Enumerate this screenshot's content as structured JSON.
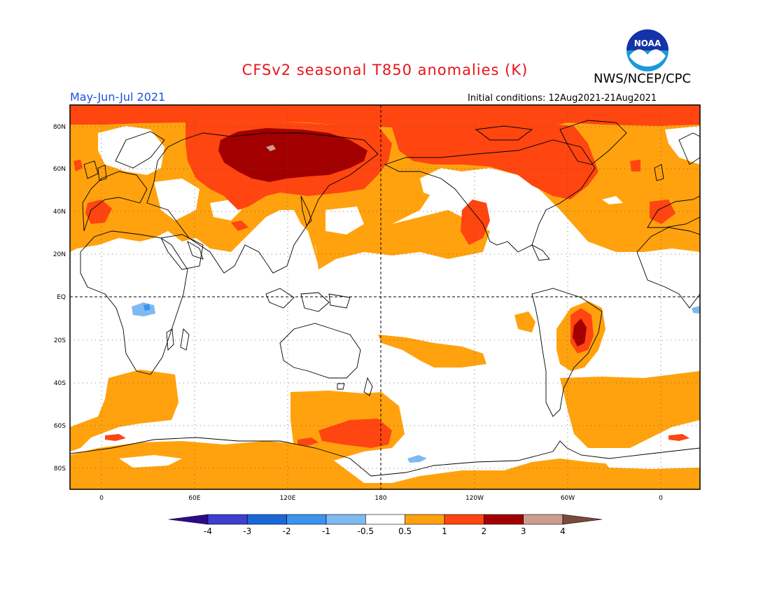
{
  "header": {
    "title": "CFSv2 seasonal T850 anomalies (K)",
    "organization": "NWS/NCEP/CPC",
    "logo_text": "NOAA",
    "period": "May-Jun-Jul 2021",
    "initial_conditions": "Initial conditions: 12Aug2021-21Aug2021"
  },
  "map": {
    "lon_labels": [
      "0",
      "60E",
      "120E",
      "180",
      "120W",
      "60W",
      "0"
    ],
    "lat_labels": [
      "80N",
      "60N",
      "40N",
      "20N",
      "EQ",
      "20S",
      "40S",
      "60S",
      "80S"
    ]
  },
  "colorbar": {
    "tick_labels": [
      "-4",
      "-3",
      "-2",
      "-1",
      "-0.5",
      "0.5",
      "1",
      "2",
      "3",
      "4"
    ],
    "colors": [
      "#2d0a8c",
      "#3d3fd0",
      "#1a68d8",
      "#3c93ee",
      "#7fb9f2",
      "#ffffff",
      "#ffa20e",
      "#ff4510",
      "#a20000",
      "#cd9c8c",
      "#7a4a3a"
    ]
  }
}
